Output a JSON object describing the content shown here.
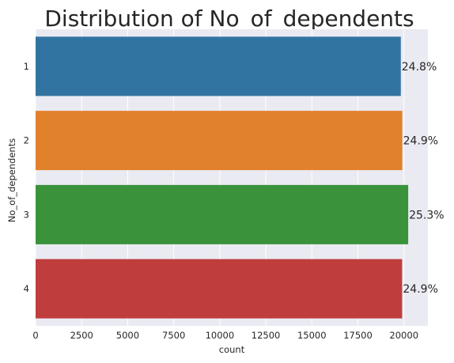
{
  "chart_data": {
    "type": "bar",
    "orientation": "horizontal",
    "title": "Distribution of No_of_dependents",
    "xlabel": "count",
    "ylabel": "No_of_dependents",
    "categories": [
      "1",
      "2",
      "3",
      "4"
    ],
    "values": [
      19830,
      19910,
      20230,
      19900
    ],
    "percent_labels": [
      "24.8%",
      "24.9%",
      "25.3%",
      "24.9%"
    ],
    "colors": [
      "#3274a1",
      "#e1812c",
      "#3a923a",
      "#c03d3e"
    ],
    "x_ticks": [
      0,
      2500,
      5000,
      7500,
      10000,
      12500,
      15000,
      17500,
      20000
    ],
    "x_tick_labels": [
      "0",
      "2500",
      "5000",
      "7500",
      "10000",
      "12500",
      "15000",
      "17500",
      "20000"
    ],
    "xlim": [
      0,
      21300
    ],
    "grid": true,
    "background": "#eaeaf2",
    "legend": "none"
  }
}
